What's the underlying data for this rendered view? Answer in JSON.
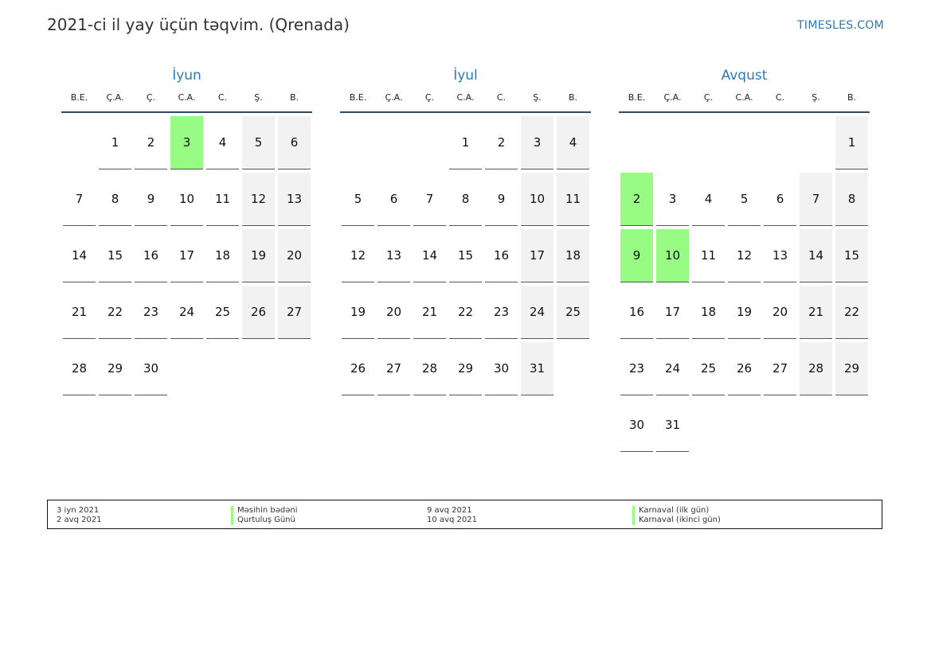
{
  "header": {
    "title": "2021-ci il yay üçün təqvim. (Qrenada)",
    "site": "TIMESLES.COM"
  },
  "weekdays": [
    "B.E.",
    "Ç.A.",
    "Ç.",
    "C.A.",
    "C.",
    "Ş.",
    "B."
  ],
  "months": [
    {
      "name": "İyun",
      "weeks": [
        [
          null,
          1,
          2,
          3,
          4,
          5,
          6
        ],
        [
          7,
          8,
          9,
          10,
          11,
          12,
          13
        ],
        [
          14,
          15,
          16,
          17,
          18,
          19,
          20
        ],
        [
          21,
          22,
          23,
          24,
          25,
          26,
          27
        ],
        [
          28,
          29,
          30,
          null,
          null,
          null,
          null
        ]
      ],
      "holidays": [
        3
      ]
    },
    {
      "name": "İyul",
      "weeks": [
        [
          null,
          null,
          null,
          1,
          2,
          3,
          4
        ],
        [
          5,
          6,
          7,
          8,
          9,
          10,
          11
        ],
        [
          12,
          13,
          14,
          15,
          16,
          17,
          18
        ],
        [
          19,
          20,
          21,
          22,
          23,
          24,
          25
        ],
        [
          26,
          27,
          28,
          29,
          30,
          31,
          null
        ]
      ],
      "holidays": []
    },
    {
      "name": "Avqust",
      "weeks": [
        [
          null,
          null,
          null,
          null,
          null,
          null,
          1
        ],
        [
          2,
          3,
          4,
          5,
          6,
          7,
          8
        ],
        [
          9,
          10,
          11,
          12,
          13,
          14,
          15
        ],
        [
          16,
          17,
          18,
          19,
          20,
          21,
          22
        ],
        [
          23,
          24,
          25,
          26,
          27,
          28,
          29
        ],
        [
          30,
          31,
          null,
          null,
          null,
          null,
          null
        ]
      ],
      "holidays": [
        2,
        9,
        10
      ]
    }
  ],
  "legend": {
    "left": [
      {
        "date": "3 iyn 2021",
        "name": "Məsihin bədəni"
      },
      {
        "date": "2 avq 2021",
        "name": "Qurtuluş Günü"
      }
    ],
    "right": [
      {
        "date": "9 avq 2021",
        "name": "Karnaval (ilk gün)"
      },
      {
        "date": "10 avq 2021",
        "name": "Karnaval (ikinci gün)"
      }
    ]
  },
  "colors": {
    "accent": "#2a7ab8",
    "holiday": "#98fb83",
    "weekend": "#f2f2f2",
    "rule": "#2e4a66"
  }
}
